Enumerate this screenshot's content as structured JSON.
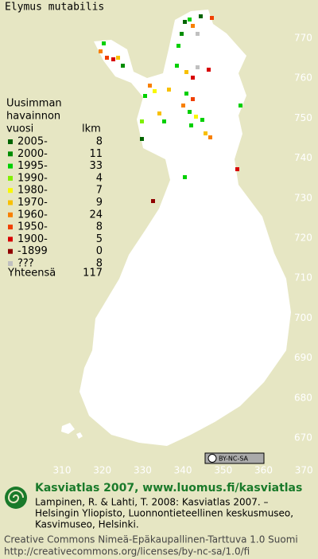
{
  "title": "Elymus mutabilis",
  "legend": {
    "heading": [
      "Uusimman",
      "havainnon",
      "vuosi"
    ],
    "count_heading": "lkm",
    "entries": [
      {
        "label": "2005-",
        "count": 8,
        "color": "#006400"
      },
      {
        "label": "2000-",
        "count": 11,
        "color": "#008c00"
      },
      {
        "label": "1995-",
        "count": 33,
        "color": "#00d000"
      },
      {
        "label": "1990-",
        "count": 4,
        "color": "#80f000"
      },
      {
        "label": "1980-",
        "count": 7,
        "color": "#f8f800"
      },
      {
        "label": "1970-",
        "count": 9,
        "color": "#f8c000"
      },
      {
        "label": "1960-",
        "count": 24,
        "color": "#f88000"
      },
      {
        "label": "1950-",
        "count": 8,
        "color": "#f04000"
      },
      {
        "label": "1900-",
        "count": 5,
        "color": "#d80000"
      },
      {
        "label": "-1899",
        "count": 0,
        "color": "#900000"
      },
      {
        "label": "???",
        "count": 8,
        "color": "#c0c0c0"
      }
    ],
    "total_label": "Yhteensä",
    "total": 117
  },
  "grid": {
    "xticks": [
      310,
      320,
      330,
      340,
      350,
      360,
      370
    ],
    "yticks": [
      670,
      680,
      690,
      700,
      710,
      720,
      730,
      740,
      750,
      760,
      770
    ]
  },
  "footer": {
    "site": "Kasviatlas 2007, www.luomus.fi/kasviatlas",
    "citation": [
      "Lampinen, R. & Lahti, T. 2008: Kasviatlas 2007. –",
      "Helsingin Yliopisto, Luonnontieteellinen keskusmuseo,",
      "Kasvimuseo, Helsinki."
    ],
    "license": [
      "Creative Commons Nimeä-Epäkaupallinen-Tarttuva 1.0 Suomi",
      "http://creativecommons.org/licenses/by-nc-sa/1.0/fi"
    ],
    "badge": "BY-NC-SA"
  }
}
